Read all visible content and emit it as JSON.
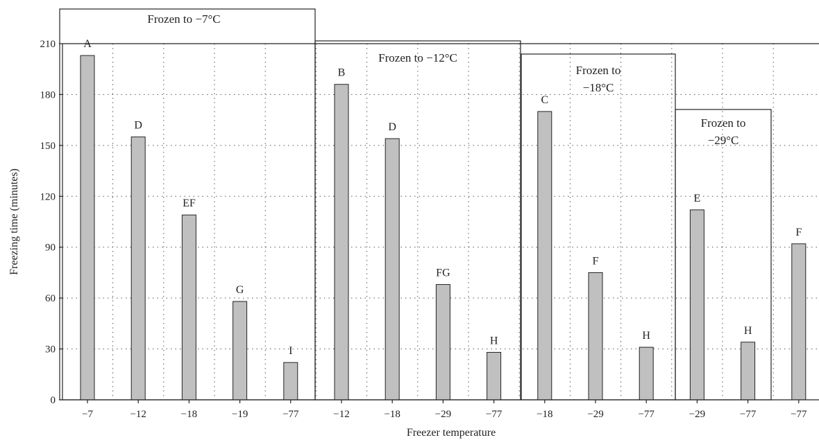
{
  "chart_data": {
    "type": "bar",
    "title": "",
    "xlabel": "Freezer temperature",
    "ylabel": "Freezing time (minutes)",
    "ylim": [
      0,
      210
    ],
    "yticks": [
      0,
      30,
      60,
      90,
      120,
      150,
      180,
      210
    ],
    "grid": "dotted",
    "categories": [
      "−7",
      "−12",
      "−18",
      "−19",
      "−77",
      "−12",
      "−18",
      "−29",
      "−77",
      "−18",
      "−29",
      "−77",
      "−29",
      "−77",
      "−77"
    ],
    "values": [
      203,
      155,
      109,
      58,
      22,
      186,
      154,
      68,
      28,
      170,
      75,
      31,
      112,
      34,
      92
    ],
    "letters": [
      "A",
      "D",
      "EF",
      "G",
      "I",
      "B",
      "D",
      "FG",
      "H",
      "C",
      "F",
      "H",
      "E",
      "H",
      "F"
    ],
    "groups": [
      {
        "label_lines": [
          "Frozen to −7°C"
        ],
        "start": 0,
        "end": 4
      },
      {
        "label_lines": [
          "Frozen to −12°C"
        ],
        "start": 5,
        "end": 8
      },
      {
        "label_lines": [
          "Frozen to",
          "−18°C"
        ],
        "start": 9,
        "end": 11
      },
      {
        "label_lines": [
          "Frozen to",
          "−29°C"
        ],
        "start": 12,
        "end": 13
      }
    ]
  }
}
